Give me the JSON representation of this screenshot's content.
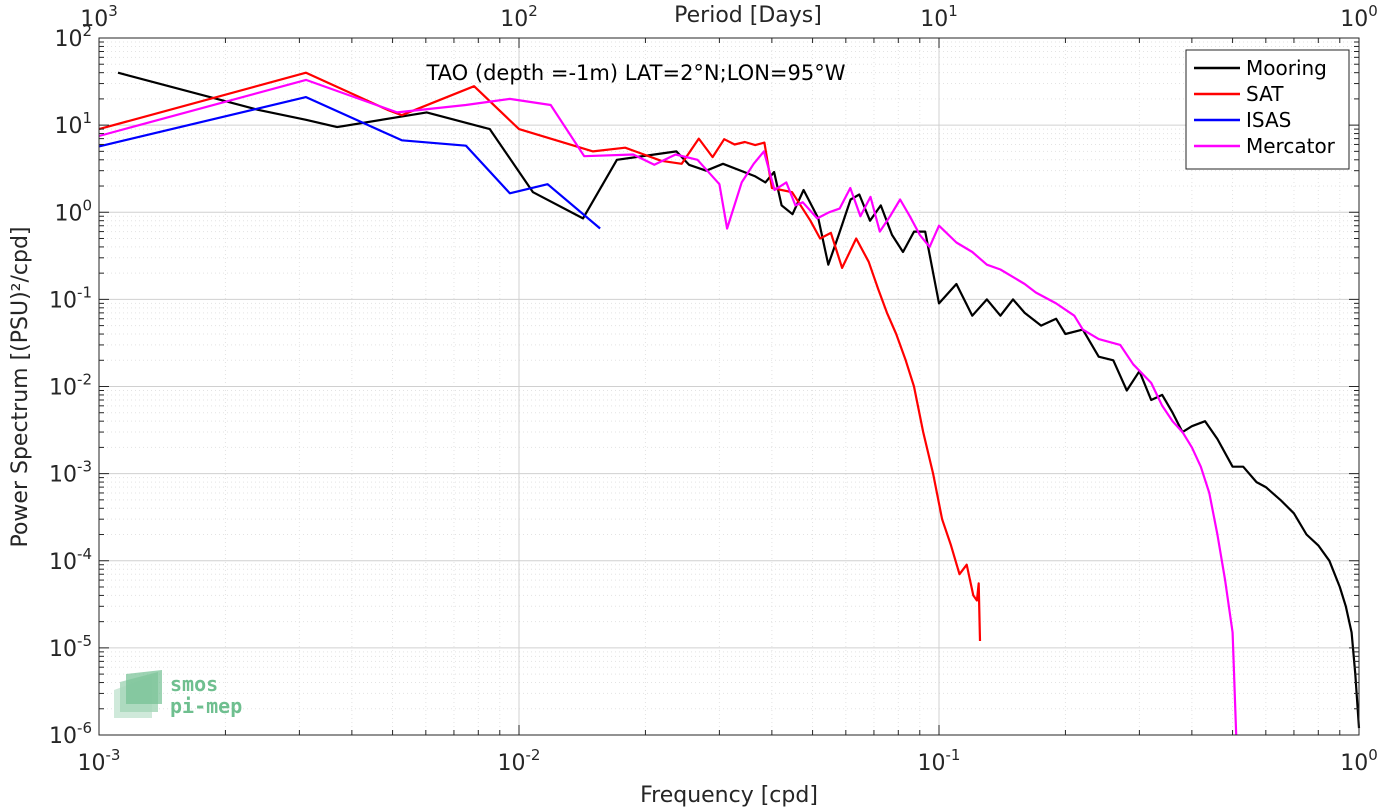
{
  "chart_data": {
    "type": "line",
    "title": "TAO (depth =-1m) LAT=2°N;LON=95°W",
    "xlabel": "Frequency [cpd]",
    "ylabel": "Power Spectrum [(PSU)²/cpd]",
    "top_axis_label": "Period [Days]",
    "xscale": "log",
    "yscale": "log",
    "xlim": [
      0.001,
      1
    ],
    "ylim": [
      1e-06,
      100
    ],
    "x_ticks": [
      {
        "value": 0.001,
        "base": "10",
        "exp": "-3"
      },
      {
        "value": 0.01,
        "base": "10",
        "exp": "-2"
      },
      {
        "value": 0.1,
        "base": "10",
        "exp": "-1"
      },
      {
        "value": 1,
        "base": "10",
        "exp": "0"
      }
    ],
    "top_ticks": [
      {
        "value": 0.001,
        "base": "10",
        "exp": "3"
      },
      {
        "value": 0.01,
        "base": "10",
        "exp": "2"
      },
      {
        "value": 0.1,
        "base": "10",
        "exp": "1"
      },
      {
        "value": 1,
        "base": "10",
        "exp": "0"
      }
    ],
    "y_ticks": [
      {
        "value": 1e-06,
        "base": "10",
        "exp": "-6"
      },
      {
        "value": 1e-05,
        "base": "10",
        "exp": "-5"
      },
      {
        "value": 0.0001,
        "base": "10",
        "exp": "-4"
      },
      {
        "value": 0.001,
        "base": "10",
        "exp": "-3"
      },
      {
        "value": 0.01,
        "base": "10",
        "exp": "-2"
      },
      {
        "value": 0.1,
        "base": "10",
        "exp": "-1"
      },
      {
        "value": 1,
        "base": "10",
        "exp": "0"
      },
      {
        "value": 10,
        "base": "10",
        "exp": "1"
      },
      {
        "value": 100,
        "base": "10",
        "exp": "2"
      }
    ],
    "grid": true,
    "legend_position": "top-right",
    "series": [
      {
        "name": "Mooring",
        "color": "#000000",
        "points": [
          [
            0.00111,
            40
          ],
          [
            0.00239,
            15
          ],
          [
            0.00311,
            11.5
          ],
          [
            0.00369,
            9.5
          ],
          [
            0.00603,
            14
          ],
          [
            0.00852,
            9
          ],
          [
            0.0108,
            1.7
          ],
          [
            0.0142,
            0.85
          ],
          [
            0.0171,
            4
          ],
          [
            0.0237,
            5
          ],
          [
            0.0254,
            3.5
          ],
          [
            0.0279,
            3
          ],
          [
            0.0306,
            3.6
          ],
          [
            0.0364,
            2.6
          ],
          [
            0.0386,
            2.2
          ],
          [
            0.0405,
            2.9
          ],
          [
            0.0422,
            1.2
          ],
          [
            0.0448,
            0.95
          ],
          [
            0.0476,
            1.8
          ],
          [
            0.0516,
            0.85
          ],
          [
            0.0545,
            0.25
          ],
          [
            0.0577,
            0.55
          ],
          [
            0.0616,
            1.4
          ],
          [
            0.0646,
            1.6
          ],
          [
            0.0685,
            0.8
          ],
          [
            0.0727,
            1.2
          ],
          [
            0.0773,
            0.55
          ],
          [
            0.0821,
            0.35
          ],
          [
            0.0872,
            0.6
          ],
          [
            0.0927,
            0.6
          ],
          [
            0.1,
            0.09
          ],
          [
            0.11,
            0.15
          ],
          [
            0.12,
            0.065
          ],
          [
            0.13,
            0.1
          ],
          [
            0.14,
            0.065
          ],
          [
            0.15,
            0.1
          ],
          [
            0.16,
            0.07
          ],
          [
            0.175,
            0.05
          ],
          [
            0.19,
            0.06
          ],
          [
            0.2,
            0.04
          ],
          [
            0.22,
            0.045
          ],
          [
            0.24,
            0.022
          ],
          [
            0.26,
            0.02
          ],
          [
            0.28,
            0.009
          ],
          [
            0.3,
            0.015
          ],
          [
            0.32,
            0.007
          ],
          [
            0.34,
            0.008
          ],
          [
            0.36,
            0.005
          ],
          [
            0.38,
            0.003
          ],
          [
            0.4,
            0.0035
          ],
          [
            0.43,
            0.004
          ],
          [
            0.46,
            0.0025
          ],
          [
            0.5,
            0.0012
          ],
          [
            0.53,
            0.0012
          ],
          [
            0.57,
            0.0008
          ],
          [
            0.6,
            0.0007
          ],
          [
            0.65,
            0.0005
          ],
          [
            0.7,
            0.00035
          ],
          [
            0.75,
            0.0002
          ],
          [
            0.8,
            0.00015
          ],
          [
            0.85,
            0.0001
          ],
          [
            0.9,
            5e-05
          ],
          [
            0.93,
            3e-05
          ],
          [
            0.96,
            1.5e-05
          ],
          [
            0.98,
            5e-06
          ],
          [
            1.0,
            1.2e-06
          ]
        ]
      },
      {
        "name": "SAT",
        "color": "#ff0000",
        "points": [
          [
            0.001,
            9
          ],
          [
            0.00311,
            40
          ],
          [
            0.00486,
            15
          ],
          [
            0.00526,
            13
          ],
          [
            0.00782,
            28
          ],
          [
            0.01,
            9
          ],
          [
            0.015,
            5
          ],
          [
            0.0179,
            5.5
          ],
          [
            0.0218,
            3.9
          ],
          [
            0.0244,
            3.6
          ],
          [
            0.0268,
            7
          ],
          [
            0.0289,
            4.3
          ],
          [
            0.0308,
            6.9
          ],
          [
            0.0326,
            6
          ],
          [
            0.0345,
            6.4
          ],
          [
            0.0365,
            5.9
          ],
          [
            0.0384,
            6.3
          ],
          [
            0.04,
            1.9
          ],
          [
            0.0447,
            1.7
          ],
          [
            0.0494,
            0.8
          ],
          [
            0.0521,
            0.5
          ],
          [
            0.0553,
            0.58
          ],
          [
            0.0588,
            0.23
          ],
          [
            0.0635,
            0.5
          ],
          [
            0.068,
            0.27
          ],
          [
            0.0717,
            0.13
          ],
          [
            0.0752,
            0.07
          ],
          [
            0.0791,
            0.04
          ],
          [
            0.0833,
            0.02
          ],
          [
            0.0872,
            0.01
          ],
          [
            0.0917,
            0.003
          ],
          [
            0.0968,
            0.001
          ],
          [
            0.1017,
            0.0003
          ],
          [
            0.1068,
            0.00015
          ],
          [
            0.1119,
            7e-05
          ],
          [
            0.1164,
            9e-05
          ],
          [
            0.1207,
            4e-05
          ],
          [
            0.1231,
            3.5e-05
          ],
          [
            0.1243,
            5.5e-05
          ],
          [
            0.1252,
            1.2e-05
          ]
        ]
      },
      {
        "name": "ISAS",
        "color": "#0000ff",
        "points": [
          [
            0.001,
            5.7
          ],
          [
            0.00311,
            21
          ],
          [
            0.00526,
            6.7
          ],
          [
            0.00748,
            5.8
          ],
          [
            0.00951,
            1.65
          ],
          [
            0.0117,
            2.1
          ],
          [
            0.0156,
            0.65
          ]
        ]
      },
      {
        "name": "Mercator",
        "color": "#ff00ff",
        "points": [
          [
            0.001,
            7.5
          ],
          [
            0.00311,
            33
          ],
          [
            0.00513,
            14
          ],
          [
            0.00747,
            17
          ],
          [
            0.00951,
            20
          ],
          [
            0.0119,
            17
          ],
          [
            0.0143,
            4.4
          ],
          [
            0.0187,
            4.6
          ],
          [
            0.021,
            3.5
          ],
          [
            0.0236,
            4.6
          ],
          [
            0.0266,
            4
          ],
          [
            0.03,
            2.1
          ],
          [
            0.0313,
            0.65
          ],
          [
            0.0339,
            2.2
          ],
          [
            0.0362,
            3.6
          ],
          [
            0.0383,
            5
          ],
          [
            0.0406,
            1.8
          ],
          [
            0.0433,
            2.2
          ],
          [
            0.0455,
            1.2
          ],
          [
            0.0474,
            1.3
          ],
          [
            0.0513,
            0.85
          ],
          [
            0.0547,
            1
          ],
          [
            0.058,
            1.1
          ],
          [
            0.0615,
            1.9
          ],
          [
            0.065,
            0.9
          ],
          [
            0.0687,
            1.5
          ],
          [
            0.0723,
            0.6
          ],
          [
            0.0765,
            0.9
          ],
          [
            0.0808,
            1.4
          ],
          [
            0.0852,
            0.9
          ],
          [
            0.09,
            0.55
          ],
          [
            0.095,
            0.4
          ],
          [
            0.1,
            0.7
          ],
          [
            0.11,
            0.45
          ],
          [
            0.12,
            0.35
          ],
          [
            0.13,
            0.25
          ],
          [
            0.14,
            0.22
          ],
          [
            0.16,
            0.15
          ],
          [
            0.17,
            0.12
          ],
          [
            0.19,
            0.09
          ],
          [
            0.21,
            0.065
          ],
          [
            0.22,
            0.045
          ],
          [
            0.24,
            0.035
          ],
          [
            0.27,
            0.03
          ],
          [
            0.29,
            0.018
          ],
          [
            0.32,
            0.011
          ],
          [
            0.34,
            0.006
          ],
          [
            0.36,
            0.004
          ],
          [
            0.38,
            0.003
          ],
          [
            0.4,
            0.002
          ],
          [
            0.42,
            0.0012
          ],
          [
            0.44,
            0.0006
          ],
          [
            0.46,
            0.0002
          ],
          [
            0.48,
            6e-05
          ],
          [
            0.5,
            1.5e-05
          ],
          [
            0.51,
            1e-06
          ]
        ]
      }
    ]
  },
  "logo": {
    "line1": "smos",
    "line2": "pi-mep"
  }
}
